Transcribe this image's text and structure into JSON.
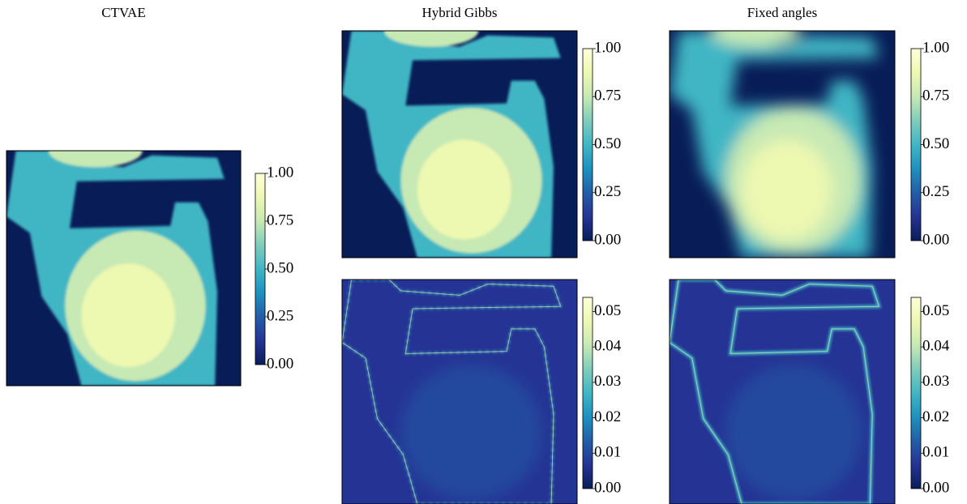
{
  "chart_data": [
    {
      "type": "heatmap",
      "title": "CTVAE",
      "colormap": [
        "#081d58",
        "#253494",
        "#225ea8",
        "#1d91c0",
        "#41b6c4",
        "#7fcdbb",
        "#c7e9b4",
        "#edf8b1",
        "#ffffd9"
      ],
      "clim": [
        0,
        1
      ],
      "cticks": [
        {
          "value": 0,
          "label": "0.00"
        },
        0.25,
        {
          "value": 0.5,
          "label": "0.50"
        },
        0.75,
        {
          "value": 1,
          "label": "1.00"
        }
      ]
    },
    {
      "type": "heatmap",
      "title": "Hybrid Gibbs",
      "colormap": [
        "#081d58",
        "#253494",
        "#225ea8",
        "#1d91c0",
        "#41b6c4",
        "#7fcdbb",
        "#c7e9b4",
        "#edf8b1",
        "#ffffd9"
      ],
      "clim": [
        0,
        1
      ],
      "cticks": [
        {
          "value": 0,
          "label": "0.00"
        },
        0.25,
        {
          "value": 0.5,
          "label": "0.50"
        },
        0.75,
        {
          "value": 1,
          "label": "1.00"
        }
      ]
    },
    {
      "type": "heatmap",
      "title": "Fixed angles",
      "colormap": [
        "#081d58",
        "#253494",
        "#225ea8",
        "#1d91c0",
        "#41b6c4",
        "#7fcdbb",
        "#c7e9b4",
        "#edf8b1",
        "#ffffd9"
      ],
      "clim": [
        0,
        1
      ],
      "cticks": [
        {
          "value": 0,
          "label": "0.00"
        },
        0.25,
        {
          "value": 0.5,
          "label": "0.50"
        },
        0.75,
        {
          "value": 1,
          "label": "1.00"
        }
      ]
    },
    {
      "type": "heatmap",
      "colormap": [
        "#081d58",
        "#253494",
        "#225ea8",
        "#1d91c0",
        "#41b6c4",
        "#7fcdbb",
        "#c7e9b4",
        "#edf8b1",
        "#ffffd9"
      ],
      "clim": [
        0,
        0.054
      ],
      "cticks": [
        {
          "value": 0,
          "label": "0.00"
        },
        0.01,
        0.02,
        0.03,
        0.04,
        0.05
      ]
    },
    {
      "type": "heatmap",
      "colormap": [
        "#081d58",
        "#253494",
        "#225ea8",
        "#1d91c0",
        "#41b6c4",
        "#7fcdbb",
        "#c7e9b4",
        "#edf8b1",
        "#ffffd9"
      ],
      "clim": [
        0,
        0.054
      ],
      "cticks": [
        {
          "value": 0,
          "label": "0.00"
        },
        0.01,
        0.02,
        0.03,
        0.04,
        0.05
      ]
    }
  ]
}
